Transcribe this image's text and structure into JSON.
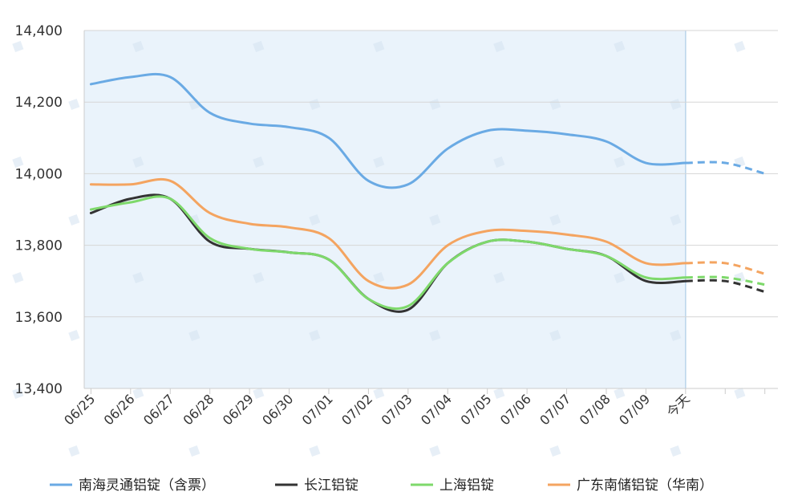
{
  "chart_data": {
    "type": "line",
    "categories": [
      "06/25",
      "06/26",
      "06/27",
      "06/28",
      "06/29",
      "06/30",
      "07/01",
      "07/02",
      "07/03",
      "07/04",
      "07/05",
      "07/06",
      "07/07",
      "07/08",
      "07/09",
      "今天",
      "",
      ""
    ],
    "forecast_start_index": 15,
    "ylim": [
      13400,
      14400
    ],
    "yticks": [
      13400,
      13600,
      13800,
      14000,
      14200,
      14400
    ],
    "ytick_labels": [
      "13,400",
      "13,600",
      "13,800",
      "14,000",
      "14,200",
      "14,400"
    ],
    "grid": true,
    "legend_position": "bottom",
    "series": [
      {
        "name": "南海灵通铝锭（含票）",
        "color": "#6aaae4",
        "values": [
          14250,
          14270,
          14270,
          14170,
          14140,
          14130,
          14100,
          13980,
          13970,
          14070,
          14120,
          14120,
          14110,
          14090,
          14030,
          14030,
          14030,
          14000
        ]
      },
      {
        "name": "长江铝锭",
        "color": "#333333",
        "values": [
          13890,
          13930,
          13930,
          13810,
          13790,
          13780,
          13760,
          13650,
          13620,
          13750,
          13810,
          13810,
          13790,
          13770,
          13700,
          13700,
          13700,
          13670
        ]
      },
      {
        "name": "上海铝锭",
        "color": "#7ed96b",
        "values": [
          13900,
          13920,
          13930,
          13820,
          13790,
          13780,
          13760,
          13650,
          13630,
          13750,
          13810,
          13810,
          13790,
          13770,
          13710,
          13710,
          13710,
          13690
        ]
      },
      {
        "name": "广东南储铝锭（华南）",
        "color": "#f4a460",
        "values": [
          13970,
          13970,
          13980,
          13890,
          13860,
          13850,
          13820,
          13700,
          13690,
          13800,
          13840,
          13840,
          13830,
          13810,
          13750,
          13750,
          13750,
          13720
        ]
      }
    ]
  }
}
